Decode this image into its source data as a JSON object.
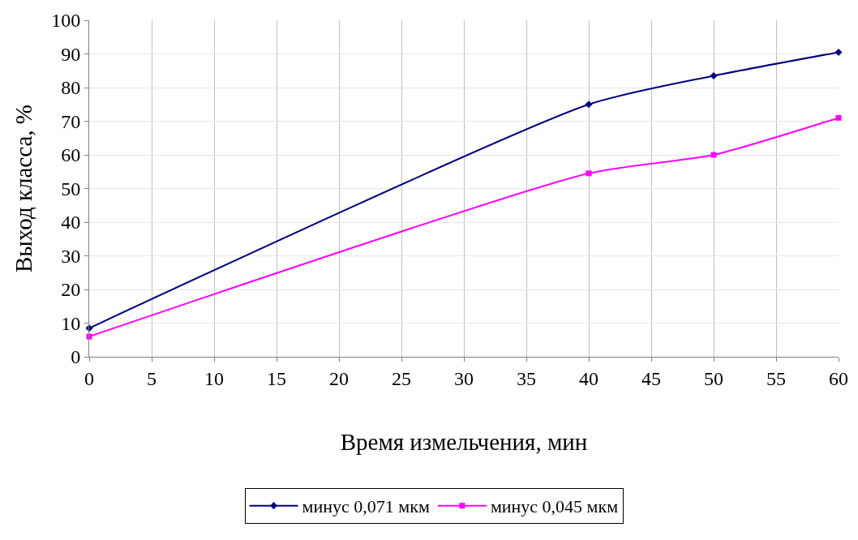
{
  "chart_data": {
    "type": "line",
    "xlabel": "Время измельчения, мин",
    "ylabel": "Выход класса, %",
    "x": [
      0,
      40,
      50,
      60
    ],
    "series": [
      {
        "name": "минус 0,071 мкм",
        "color": "#000080",
        "values": [
          8.5,
          75,
          83.5,
          90.5
        ],
        "marker": "diamond"
      },
      {
        "name": "минус 0,045 мкм",
        "color": "#ff00ff",
        "values": [
          6,
          54.5,
          60,
          71
        ],
        "marker": "square"
      }
    ],
    "xlim": [
      0,
      60
    ],
    "xticks": [
      0,
      5,
      10,
      15,
      20,
      25,
      30,
      35,
      40,
      45,
      50,
      55,
      60
    ],
    "ylim": [
      0,
      100
    ],
    "yticks": [
      0,
      10,
      20,
      30,
      40,
      50,
      60,
      70,
      80,
      90,
      100
    ],
    "grid": true,
    "legend": "bottom",
    "line_style": "solid"
  }
}
